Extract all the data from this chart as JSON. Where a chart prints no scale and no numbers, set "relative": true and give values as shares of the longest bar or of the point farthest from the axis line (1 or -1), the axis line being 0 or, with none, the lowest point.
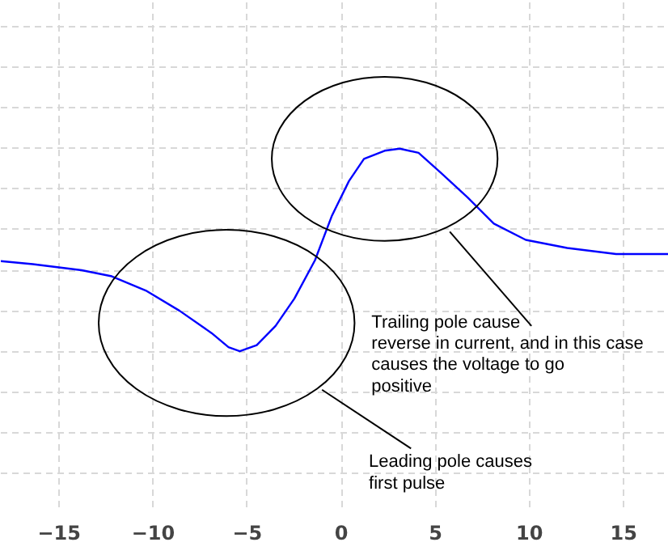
{
  "chart_data": {
    "type": "line",
    "relative": true,
    "grid": true,
    "color": "#0000ff",
    "x": [
      -18.1,
      -16.4,
      -13.8,
      -12.2,
      -10.4,
      -8.6,
      -6.9,
      -6.0,
      -5.4,
      -4.5,
      -3.5,
      -2.5,
      -1.4,
      -0.5,
      0.4,
      1.2,
      2.3,
      3.1,
      4.1,
      5.3,
      6.7,
      8.1,
      9.8,
      12.0,
      14.6,
      17.4
    ],
    "values": [
      0.445,
      0.43,
      0.4,
      0.37,
      0.3,
      0.2,
      0.09,
      0.02,
      0,
      0.03,
      0.125,
      0.26,
      0.45,
      0.67,
      0.84,
      0.95,
      0.99,
      1.0,
      0.98,
      0.88,
      0.76,
      0.63,
      0.55,
      0.51,
      0.48,
      0.48
    ],
    "xlim": [
      -18.1,
      17.4
    ],
    "xticks": [
      -15,
      -10,
      -5,
      0,
      5,
      10,
      15
    ],
    "annotations": [
      "Leading pole causes\nfirst pulse",
      "Trailing pole cause\nreverse in current, and in this case\ncauses the voltage to go\npositive"
    ]
  }
}
